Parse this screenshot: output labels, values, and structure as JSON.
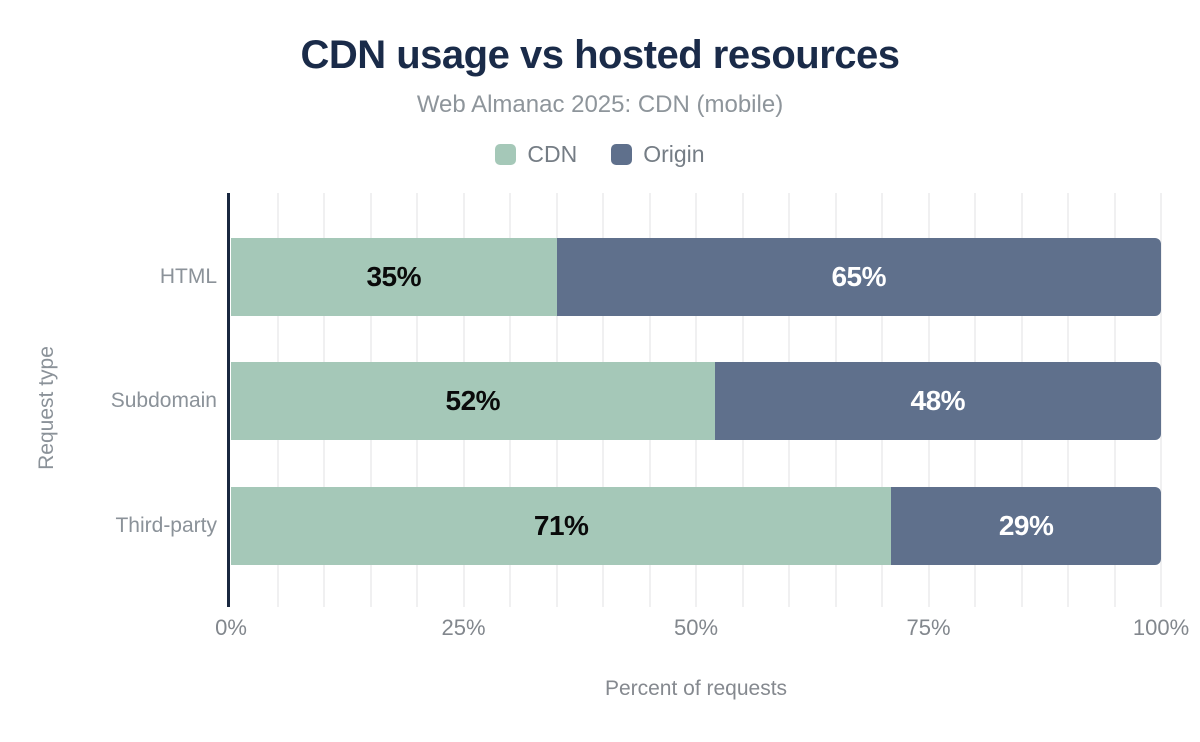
{
  "chart_data": {
    "type": "bar",
    "orientation": "horizontal",
    "stacked": true,
    "title": "CDN usage vs hosted resources",
    "subtitle": "Web Almanac 2025: CDN (mobile)",
    "xlabel": "Percent of requests",
    "ylabel": "Request type",
    "categories": [
      "HTML",
      "Subdomain",
      "Third-party"
    ],
    "series": [
      {
        "name": "CDN",
        "color": "#a5c8b8",
        "label_color": "#0a0a0a",
        "values": [
          35,
          52,
          71
        ]
      },
      {
        "name": "Origin",
        "color": "#5f708c",
        "label_color": "#ffffff",
        "values": [
          65,
          48,
          29
        ]
      }
    ],
    "value_label_format": "{v}%",
    "xlim": [
      0,
      100
    ],
    "x_ticks": [
      {
        "value": 0,
        "label": "0%"
      },
      {
        "value": 25,
        "label": "25%"
      },
      {
        "value": 50,
        "label": "50%"
      },
      {
        "value": 75,
        "label": "75%"
      },
      {
        "value": 100,
        "label": "100%"
      }
    ],
    "grid": {
      "minor_step_percent": 5,
      "color": "#f0f0f1",
      "direction": "vertical"
    },
    "legend_position": "top"
  },
  "colors": {
    "background": "#ffffff",
    "title": "#1a2b49",
    "subtitle": "#8e959b",
    "axis_line": "#19273f",
    "tick_label": "#82878d",
    "category_label": "#8b9299",
    "legend_label": "#757d85"
  }
}
